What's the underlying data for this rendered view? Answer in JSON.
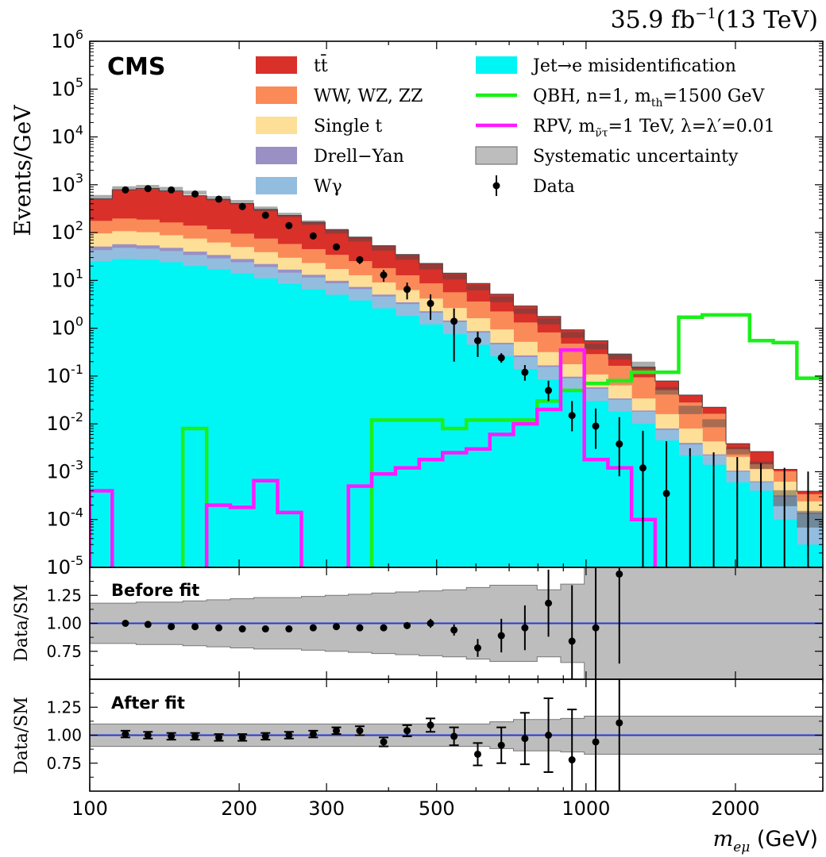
{
  "header": {
    "lumi": "35.9 fb",
    "lumi_exp": "−1",
    "energy": "(13 TeV)",
    "experiment": "CMS"
  },
  "labels": {
    "ylabel_main": "Events/GeV",
    "ylabel_ratio": "Data/SM",
    "xlabel_var": "m",
    "xlabel_sub": "eμ",
    "xlabel_unit": " (GeV)",
    "panel_before": "Before fit",
    "panel_after": "After fit"
  },
  "legend": {
    "left": [
      {
        "label": "tt̄",
        "color": "#d9302a"
      },
      {
        "label": "WW, WZ, ZZ",
        "color": "#fb8a59"
      },
      {
        "label": "Single t",
        "color": "#fddf98"
      },
      {
        "label": "Drell−Yan",
        "color": "#9a90c4"
      },
      {
        "label": "Wγ",
        "color": "#93bddf"
      }
    ],
    "right": [
      {
        "label": "Jet→e misidentification",
        "color": "#00f5f5",
        "kind": "box"
      },
      {
        "label": "QBH, n=1, m",
        "sub": "th",
        "tail": "=1500 GeV",
        "color": "#1af01a",
        "kind": "line"
      },
      {
        "label": "RPV, m",
        "sub": "ν̃τ",
        "tail": "=1 TeV, λ=λ′=0.01",
        "color": "#ff1aff",
        "kind": "line"
      },
      {
        "label": "Systematic uncertainty",
        "color": "#bdbdbd",
        "kind": "box"
      },
      {
        "label": "Data",
        "color": "#000000",
        "kind": "marker"
      }
    ]
  },
  "chart_data": {
    "type": "area",
    "x_scale": "log",
    "y_scale": "log",
    "xlim": [
      100,
      3000
    ],
    "ylim": [
      1e-05,
      1000000.0
    ],
    "ratio_ylim": [
      0.5,
      1.5
    ],
    "x_ticks": [
      100,
      200,
      300,
      500,
      1000,
      2000
    ],
    "x_tick_labels": [
      "100",
      "200",
      "300",
      "500",
      "1000",
      "2000"
    ],
    "y_ticks": [
      1e-05,
      0.0001,
      0.001,
      0.01,
      0.1,
      1,
      10,
      100,
      1000,
      10000,
      100000.0,
      1000000.0
    ],
    "y_tick_labels": [
      [
        "10",
        "-5"
      ],
      [
        "10",
        "-4"
      ],
      [
        "10",
        "-3"
      ],
      [
        "10",
        "-2"
      ],
      [
        "10",
        "-1"
      ],
      [
        "10",
        "0"
      ],
      [
        "10",
        "1"
      ],
      [
        "10",
        "2"
      ],
      [
        "10",
        "3"
      ],
      [
        "10",
        "4"
      ],
      [
        "10",
        "5"
      ],
      [
        "10",
        "6"
      ]
    ],
    "ratio_ticks": [
      0.75,
      1.0,
      1.25
    ],
    "ratio_tick_labels": [
      "0.75",
      "1.00",
      "1.25"
    ],
    "bin_edges": [
      100,
      111,
      124,
      138,
      154,
      172,
      192,
      214,
      239,
      267,
      298,
      332,
      370,
      413,
      461,
      514,
      574,
      640,
      714,
      797,
      889,
      992,
      1107,
      1235,
      1378,
      1537,
      1715,
      1914,
      2136,
      2384,
      2660,
      3000
    ],
    "series": [
      {
        "name": "Jet→e misidentification",
        "values": [
          25,
          28,
          27,
          24,
          20,
          17,
          14,
          11,
          8.5,
          6.5,
          5,
          3.8,
          2.6,
          1.8,
          1.2,
          0.75,
          0.45,
          0.26,
          0.14,
          0.085,
          0.05,
          0.03,
          0.018,
          0.01,
          0.0045,
          0.0022,
          0.0014,
          0.0006,
          0.0004,
          0.0001,
          3e-05
        ]
      },
      {
        "name": "Wγ",
        "values": [
          18,
          20,
          19,
          17,
          14,
          12,
          10,
          8,
          6,
          5,
          3.7,
          2.8,
          2,
          1.4,
          0.9,
          0.6,
          0.36,
          0.2,
          0.11,
          0.07,
          0.04,
          0.024,
          0.014,
          0.008,
          0.003,
          0.0015,
          0.0008,
          0.0004,
          0.0002,
          0.0002,
          0.0001
        ]
      },
      {
        "name": "Drell−Yan",
        "values": [
          8,
          9,
          8,
          7,
          6,
          5,
          4,
          3,
          2.3,
          1.6,
          1.1,
          0.7,
          0.45,
          0.28,
          0.17,
          0.1,
          0.06,
          0.035,
          0.02,
          0.012,
          0.007,
          0.004,
          0.002,
          0.001,
          0.0005,
          0.0003,
          0.0001,
          5e-05,
          3e-05,
          2e-05,
          1e-05
        ]
      },
      {
        "name": "Single t",
        "values": [
          45,
          50,
          48,
          40,
          35,
          28,
          22,
          17,
          13,
          10,
          7.5,
          5.5,
          4,
          2.8,
          1.9,
          1.2,
          0.75,
          0.45,
          0.25,
          0.15,
          0.08,
          0.05,
          0.03,
          0.015,
          0.008,
          0.004,
          0.002,
          0.001,
          0.0005,
          0.0003,
          0.0001
        ]
      },
      {
        "name": "WW, WZ, ZZ",
        "values": [
          80,
          90,
          85,
          75,
          65,
          55,
          45,
          36,
          28,
          22,
          17,
          12.5,
          9,
          6.5,
          4.5,
          3,
          2,
          1.3,
          0.8,
          0.5,
          0.3,
          0.18,
          0.1,
          0.06,
          0.035,
          0.02,
          0.012,
          0.0009,
          0.0003,
          0.0004,
          0.0001
        ]
      },
      {
        "name": "tt̄",
        "values": [
          330,
          590,
          650,
          580,
          450,
          380,
          310,
          230,
          170,
          120,
          80,
          55,
          35,
          22,
          14,
          8.5,
          5,
          2.9,
          1.6,
          0.95,
          0.45,
          0.26,
          0.12,
          0.06,
          0.028,
          0.012,
          0.006,
          0.0009,
          0.0012,
          0.0001,
          5e-05
        ]
      }
    ],
    "syst_band": {
      "down": [
        500,
        770,
        820,
        740,
        620,
        470,
        390,
        280,
        210,
        145,
        95,
        65,
        42,
        27,
        17,
        10.5,
        6.2,
        3.5,
        2.0,
        1.2,
        0.63,
        0.36,
        0.22,
        0.14,
        0.041,
        0.016,
        0.0085,
        0.0023,
        0.00115,
        0.00019,
        6.8e-05
      ],
      "up": [
        610,
        930,
        990,
        900,
        750,
        580,
        480,
        350,
        260,
        180,
        120,
        82,
        53,
        34,
        22,
        13.5,
        8.0,
        4.6,
        2.6,
        1.6,
        0.83,
        0.48,
        0.3,
        0.2,
        0.059,
        0.024,
        0.0125,
        0.0033,
        0.00165,
        0.00041,
        0.000152
      ]
    },
    "qbh": {
      "name": "QBH, n=1, m_th=1500 GeV",
      "values": [
        null,
        null,
        null,
        null,
        0.008,
        null,
        null,
        null,
        null,
        null,
        null,
        null,
        0.012,
        0.012,
        0.012,
        0.008,
        0.012,
        0.012,
        0.012,
        0.03,
        0.05,
        0.07,
        0.08,
        0.12,
        0.12,
        1.7,
        1.9,
        1.9,
        0.55,
        0.5,
        0.09
      ]
    },
    "rpv": {
      "name": "RPV, m_ν̃τ=1 TeV, λ=λ′=0.01",
      "values": [
        0.0004,
        null,
        null,
        null,
        null,
        0.0002,
        0.00018,
        0.00065,
        0.00014,
        null,
        null,
        0.0005,
        0.0009,
        0.0012,
        0.0018,
        0.0025,
        0.003,
        0.006,
        0.01,
        0.02,
        0.35,
        0.0018,
        0.0012,
        0.0001,
        null,
        null,
        null,
        null,
        null,
        null,
        null
      ]
    },
    "data": {
      "name": "Data",
      "x": [
        118,
        131,
        146,
        163,
        182,
        203,
        226,
        252,
        282,
        314,
        350,
        391,
        436,
        486,
        542,
        605,
        675,
        753,
        840,
        937,
        1046,
        1167,
        1302,
        1452,
        1620,
        1808,
        2017,
        2251,
        2511,
        2802
      ],
      "y": [
        780,
        830,
        780,
        640,
        500,
        350,
        230,
        140,
        85,
        50,
        27,
        13,
        6.5,
        3.3,
        1.4,
        0.55,
        0.24,
        0.12,
        0.05,
        0.015,
        0.009,
        0.0038,
        0.0012,
        0.00035,
        0.0001,
        4e-05,
        2e-05,
        1.2e-05,
        1e-05,
        1e-05
      ],
      "yerr_low": [
        30,
        30,
        30,
        25,
        22,
        18,
        15,
        12,
        9,
        7,
        5,
        3.6,
        2.5,
        1.8,
        1.2,
        0.3,
        0.05,
        0.04,
        0.02,
        0.008,
        0.006,
        0.003,
        0.0012,
        0.00035,
        0.0001,
        4e-05,
        2e-05,
        1.2e-05,
        1e-05,
        1e-05
      ],
      "yerr_high": [
        30,
        30,
        30,
        25,
        22,
        18,
        15,
        12,
        9,
        7,
        5,
        3.6,
        2.5,
        1.8,
        1.2,
        0.3,
        0.06,
        0.05,
        0.03,
        0.015,
        0.012,
        0.01,
        0.006,
        0.004,
        0.003,
        0.0025,
        0.002,
        0.0015,
        0.0012,
        0.001
      ]
    },
    "ratio_before": {
      "x": [
        118,
        131,
        146,
        163,
        182,
        203,
        226,
        252,
        282,
        314,
        350,
        391,
        436,
        486,
        542,
        605,
        675,
        753,
        840,
        937,
        1046,
        1167,
        1302,
        1452,
        1620,
        1808,
        2017
      ],
      "y": [
        1.0,
        0.99,
        0.97,
        0.97,
        0.96,
        0.95,
        0.95,
        0.95,
        0.96,
        0.97,
        0.96,
        0.96,
        0.98,
        1.0,
        0.94,
        0.78,
        0.89,
        0.96,
        1.18,
        0.84,
        0.96,
        1.44,
        null,
        null,
        null,
        null,
        null
      ],
      "err": [
        0.01,
        0.01,
        0.01,
        0.01,
        0.01,
        0.01,
        0.01,
        0.01,
        0.01,
        0.01,
        0.01,
        0.01,
        0.02,
        0.04,
        0.05,
        0.08,
        0.15,
        0.2,
        0.3,
        0.5,
        0.6,
        0.8,
        null,
        null,
        null,
        null,
        null
      ],
      "band_low": [
        0.82,
        0.82,
        0.81,
        0.81,
        0.8,
        0.79,
        0.78,
        0.77,
        0.77,
        0.76,
        0.75,
        0.74,
        0.73,
        0.72,
        0.71,
        0.7,
        0.68,
        0.66,
        0.66,
        0.7,
        0.65,
        0.5,
        0.5,
        0.5,
        0.5,
        0.5,
        0.5,
        0.5,
        0.5,
        0.5,
        0.5
      ],
      "band_high": [
        1.18,
        1.18,
        1.19,
        1.19,
        1.2,
        1.21,
        1.22,
        1.23,
        1.23,
        1.24,
        1.25,
        1.26,
        1.27,
        1.28,
        1.29,
        1.3,
        1.32,
        1.34,
        1.34,
        1.3,
        1.35,
        1.5,
        1.5,
        1.5,
        1.5,
        1.5,
        1.5,
        1.5,
        1.5,
        1.5,
        1.5
      ]
    },
    "ratio_after": {
      "x": [
        118,
        131,
        146,
        163,
        182,
        203,
        226,
        252,
        282,
        314,
        350,
        391,
        436,
        486,
        542,
        605,
        675,
        753,
        840,
        937,
        1046,
        1167,
        1302,
        1452,
        1620,
        1808,
        2017
      ],
      "y": [
        1.01,
        1.0,
        0.99,
        0.99,
        0.98,
        0.98,
        0.99,
        1.0,
        1.01,
        1.04,
        1.04,
        0.94,
        1.04,
        1.09,
        0.99,
        0.83,
        0.91,
        0.97,
        1.0,
        0.78,
        0.94,
        1.11,
        null,
        null,
        null,
        null,
        null
      ],
      "err": [
        0.03,
        0.03,
        0.03,
        0.03,
        0.03,
        0.03,
        0.03,
        0.03,
        0.03,
        0.03,
        0.04,
        0.04,
        0.05,
        0.06,
        0.08,
        0.1,
        0.16,
        0.23,
        0.33,
        0.45,
        0.6,
        0.7,
        null,
        null,
        null,
        null,
        null
      ],
      "band_low": [
        0.9,
        0.9,
        0.9,
        0.9,
        0.9,
        0.9,
        0.9,
        0.9,
        0.9,
        0.9,
        0.9,
        0.9,
        0.9,
        0.9,
        0.9,
        0.9,
        0.9,
        0.88,
        0.86,
        0.86,
        0.85,
        0.83,
        0.83,
        0.83,
        0.83,
        0.83,
        0.83,
        0.83,
        0.83,
        0.83,
        0.83
      ],
      "band_high": [
        1.1,
        1.1,
        1.1,
        1.1,
        1.1,
        1.1,
        1.1,
        1.1,
        1.1,
        1.1,
        1.1,
        1.1,
        1.1,
        1.1,
        1.1,
        1.1,
        1.1,
        1.12,
        1.14,
        1.14,
        1.15,
        1.17,
        1.17,
        1.17,
        1.17,
        1.17,
        1.17,
        1.17,
        1.17,
        1.17,
        1.17
      ]
    }
  }
}
